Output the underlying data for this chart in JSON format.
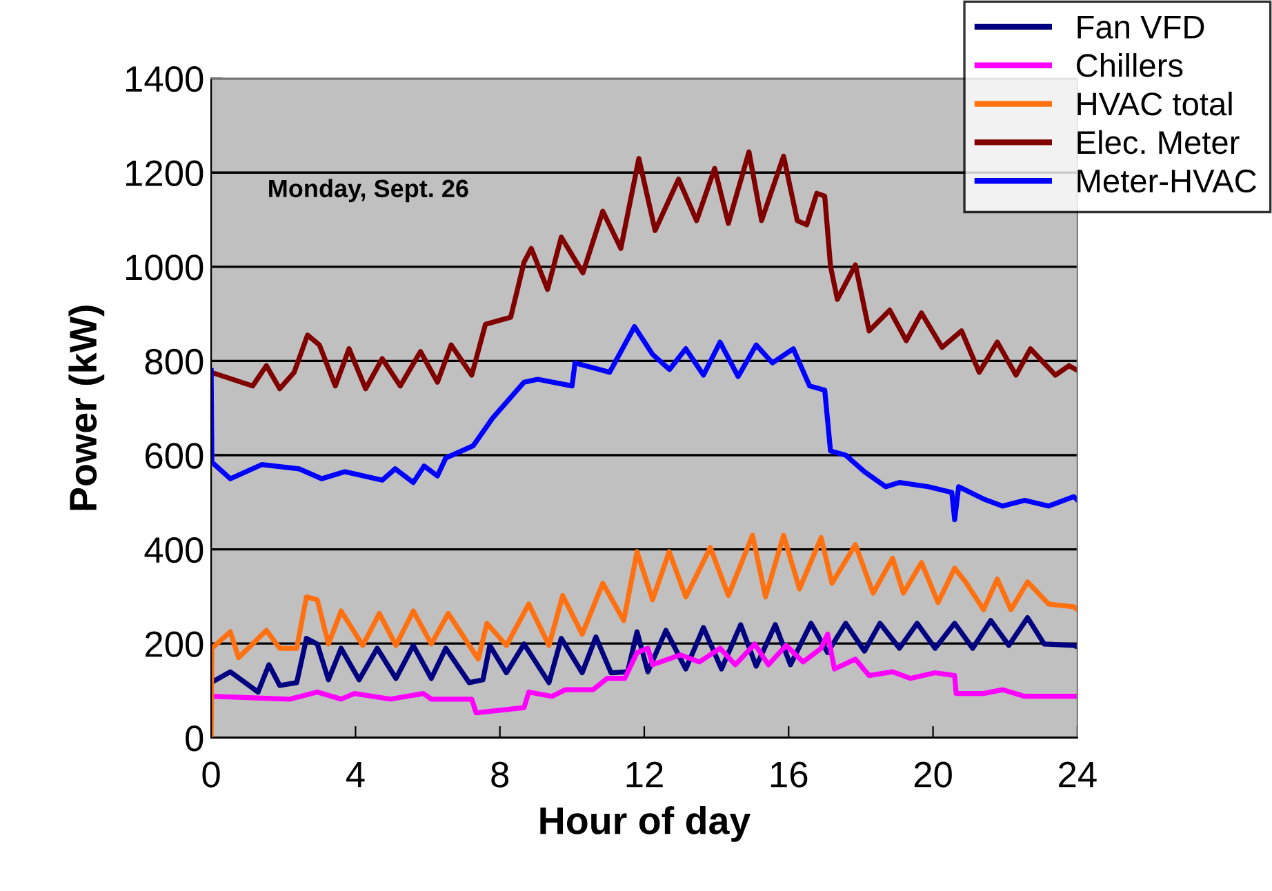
{
  "chart_data": {
    "type": "line",
    "xlabel": "Hour of day",
    "ylabel": "Power (kW)",
    "annotations": [
      "Monday, Sept. 26"
    ],
    "xlim": [
      0,
      24
    ],
    "xticks": [
      0,
      4,
      8,
      12,
      16,
      20,
      24
    ],
    "ylim": [
      0,
      1400
    ],
    "yticks": [
      0,
      200,
      400,
      600,
      800,
      1000,
      1200,
      1400
    ],
    "grid": "y",
    "legend": "top right",
    "marker": "none",
    "line_style": "solid",
    "series": [
      {
        "name": "Fan VFD",
        "color": "#000080",
        "x": [
          0,
          0.53,
          1.3,
          1.6,
          1.9,
          2.37,
          2.64,
          2.94,
          3.25,
          3.6,
          4.1,
          4.6,
          5.12,
          5.6,
          6.1,
          6.5,
          7.15,
          7.53,
          7.72,
          8.18,
          8.67,
          9.36,
          9.7,
          10.28,
          10.66,
          11.08,
          11.54,
          11.8,
          12.1,
          12.6,
          13.15,
          13.64,
          14.14,
          14.67,
          15.1,
          15.63,
          16.05,
          16.62,
          17.08,
          17.58,
          18.1,
          18.53,
          19.07,
          19.56,
          20.06,
          20.6,
          21.1,
          21.6,
          22.1,
          22.62,
          23.08,
          23.9,
          24
        ],
        "values": [
          117,
          140,
          97,
          155,
          111,
          117,
          211,
          199,
          123,
          190,
          123,
          190,
          126,
          196,
          126,
          190,
          117,
          123,
          196,
          138,
          199,
          117,
          211,
          138,
          214,
          138,
          140,
          225,
          140,
          228,
          146,
          234,
          146,
          240,
          152,
          240,
          155,
          243,
          181,
          243,
          184,
          243,
          190,
          243,
          190,
          243,
          190,
          249,
          196,
          255,
          199,
          196,
          193
        ]
      },
      {
        "name": "Chillers",
        "color": "#ff00ff",
        "x": [
          0,
          2.18,
          2.94,
          3.6,
          3.97,
          4.97,
          5.88,
          6.1,
          7.22,
          7.34,
          8.67,
          8.8,
          9.44,
          9.82,
          10.58,
          10.97,
          11.46,
          11.8,
          12.1,
          12.23,
          13.0,
          13.53,
          14.1,
          14.52,
          15.06,
          15.44,
          15.93,
          16.4,
          16.9,
          17.08,
          17.27,
          17.85,
          18.23,
          18.88,
          19.37,
          20.06,
          20.6,
          20.64,
          21.4,
          21.93,
          22.54,
          24
        ],
        "values": [
          88,
          82,
          97,
          82,
          94,
          82,
          94,
          82,
          82,
          53,
          64,
          97,
          88,
          102,
          102,
          126,
          126,
          181,
          190,
          155,
          176,
          161,
          190,
          155,
          199,
          155,
          196,
          161,
          190,
          220,
          146,
          167,
          132,
          140,
          126,
          138,
          132,
          94,
          94,
          102,
          88,
          88
        ]
      },
      {
        "name": "HVAC total",
        "color": "#ff7010",
        "x": [
          0,
          0.02,
          0.53,
          0.76,
          1.53,
          1.9,
          2.37,
          2.64,
          2.94,
          3.25,
          3.6,
          4.2,
          4.66,
          5.12,
          5.6,
          6.1,
          6.57,
          7.4,
          7.64,
          8.18,
          8.8,
          9.36,
          9.74,
          10.28,
          10.85,
          11.43,
          11.8,
          12.23,
          12.69,
          13.15,
          13.83,
          14.33,
          15.0,
          15.36,
          15.86,
          16.3,
          16.9,
          17.2,
          17.85,
          18.34,
          18.88,
          19.18,
          19.68,
          20.14,
          20.6,
          20.9,
          21.4,
          21.78,
          22.16,
          22.62,
          23.2,
          23.9,
          24
        ],
        "values": [
          0,
          190,
          225,
          170,
          228,
          190,
          190,
          299,
          293,
          199,
          269,
          196,
          264,
          196,
          269,
          199,
          264,
          167,
          243,
          196,
          284,
          196,
          302,
          220,
          328,
          249,
          395,
          293,
          395,
          299,
          404,
          302,
          430,
          299,
          430,
          316,
          425,
          328,
          410,
          307,
          381,
          307,
          372,
          287,
          360,
          331,
          272,
          337,
          272,
          331,
          284,
          278,
          272
        ]
      },
      {
        "name": "Elec. Meter",
        "color": "#800000",
        "x": [
          0,
          1.15,
          1.53,
          1.9,
          2.3,
          2.67,
          3.0,
          3.44,
          3.82,
          4.28,
          4.74,
          5.24,
          5.8,
          6.27,
          6.65,
          7.22,
          7.6,
          8.3,
          8.67,
          8.87,
          9.32,
          9.7,
          10.3,
          10.85,
          11.35,
          11.85,
          12.3,
          12.95,
          13.45,
          13.95,
          14.33,
          14.9,
          15.25,
          15.86,
          16.24,
          16.5,
          16.78,
          17.0,
          17.16,
          17.35,
          17.85,
          18.23,
          18.8,
          19.26,
          19.68,
          20.25,
          20.79,
          21.28,
          21.78,
          22.3,
          22.7,
          23.39,
          23.77,
          24
        ],
        "values": [
          776,
          747,
          790,
          741,
          776,
          855,
          834,
          747,
          826,
          741,
          805,
          747,
          820,
          755,
          834,
          770,
          878,
          893,
          1010,
          1039,
          952,
          1063,
          987,
          1118,
          1039,
          1230,
          1077,
          1186,
          1098,
          1209,
          1092,
          1244,
          1098,
          1235,
          1098,
          1089,
          1156,
          1150,
          1001,
          931,
          1004,
          864,
          908,
          843,
          902,
          829,
          864,
          776,
          840,
          770,
          826,
          770,
          790,
          780
        ]
      },
      {
        "name": "Meter-HVAC",
        "color": "#0000ff",
        "x": [
          0,
          0.02,
          0.53,
          1.4,
          2.44,
          3.06,
          3.7,
          4.74,
          5.1,
          5.6,
          5.9,
          6.27,
          6.5,
          7.26,
          7.8,
          8.67,
          9.05,
          10.0,
          10.08,
          11.04,
          11.73,
          12.23,
          12.7,
          13.15,
          13.64,
          14.1,
          14.6,
          15.1,
          15.55,
          16.13,
          16.58,
          17.0,
          17.16,
          17.58,
          18.1,
          18.69,
          19.07,
          19.87,
          20.52,
          20.6,
          20.71,
          21.4,
          21.93,
          22.54,
          23.2,
          23.9,
          24
        ],
        "values": [
          780,
          585,
          550,
          580,
          571,
          550,
          565,
          547,
          571,
          542,
          577,
          556,
          594,
          620,
          679,
          755,
          761,
          747,
          796,
          776,
          873,
          814,
          782,
          826,
          770,
          840,
          767,
          834,
          796,
          826,
          747,
          738,
          609,
          600,
          565,
          533,
          542,
          533,
          521,
          463,
          533,
          507,
          492,
          504,
          492,
          512,
          505
        ]
      }
    ]
  }
}
